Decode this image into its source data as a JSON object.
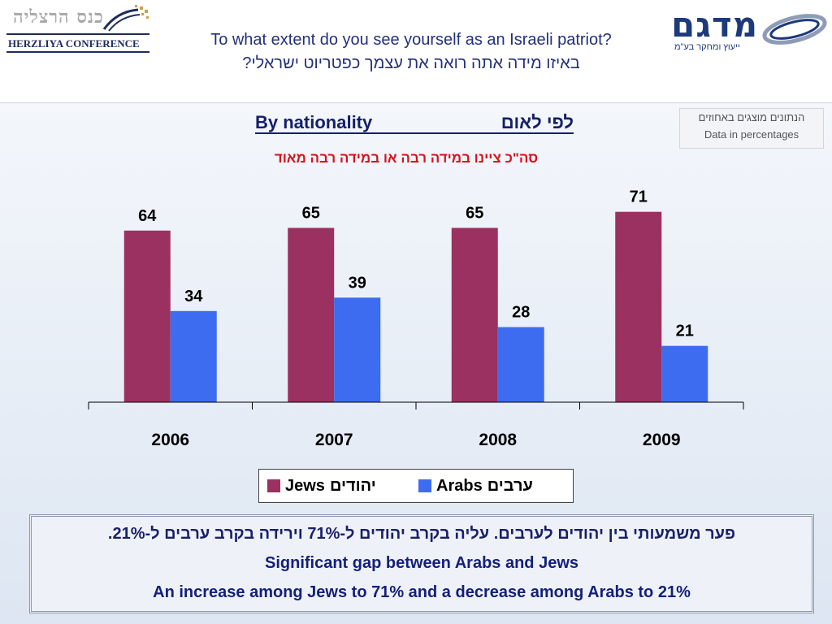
{
  "header": {
    "logo_left_hebrew": "כנס הרצליה",
    "logo_left_english": "HERZLIYA CONFERENCE",
    "logo_right_brand": "מדגם",
    "logo_right_tagline": "ייעוץ ומחקר בע\"מ",
    "title_en": "To what extent do you see yourself as an Israeli patriot?",
    "title_he": "באיזו מידה אתה רואה את עצמך כפטריוט ישראלי?"
  },
  "subtitle": {
    "en": "By nationality",
    "he": "לפי לאום"
  },
  "note": {
    "he": "הנתונים מוצגים באחוזים",
    "en": "Data in percentages"
  },
  "caption_red": "סה\"כ ציינו במידה רבה או במידה רבה מאוד",
  "chart_data": {
    "type": "bar",
    "categories": [
      "2006",
      "2007",
      "2008",
      "2009"
    ],
    "series": [
      {
        "name": "Jews יהודים",
        "label_en": "Jews",
        "label_he": "יהודים",
        "color": "#9b3160",
        "values": [
          64,
          65,
          65,
          71
        ]
      },
      {
        "name": "Arabs ערבים",
        "label_en": "Arabs",
        "label_he": "ערבים",
        "color": "#3d6cf0",
        "values": [
          34,
          39,
          28,
          21
        ]
      }
    ],
    "ylim": [
      0,
      80
    ],
    "grid": false,
    "legend": "bottom-center"
  },
  "summary": {
    "line1": "פער משמעותי בין יהודים לערבים. עליה בקרב יהודים ל-71% וירידה בקרב ערבים ל-21%.",
    "line2": "Significant gap between Arabs and Jews",
    "line3": "An increase among Jews to 71% and a decrease among Arabs to 21%"
  }
}
